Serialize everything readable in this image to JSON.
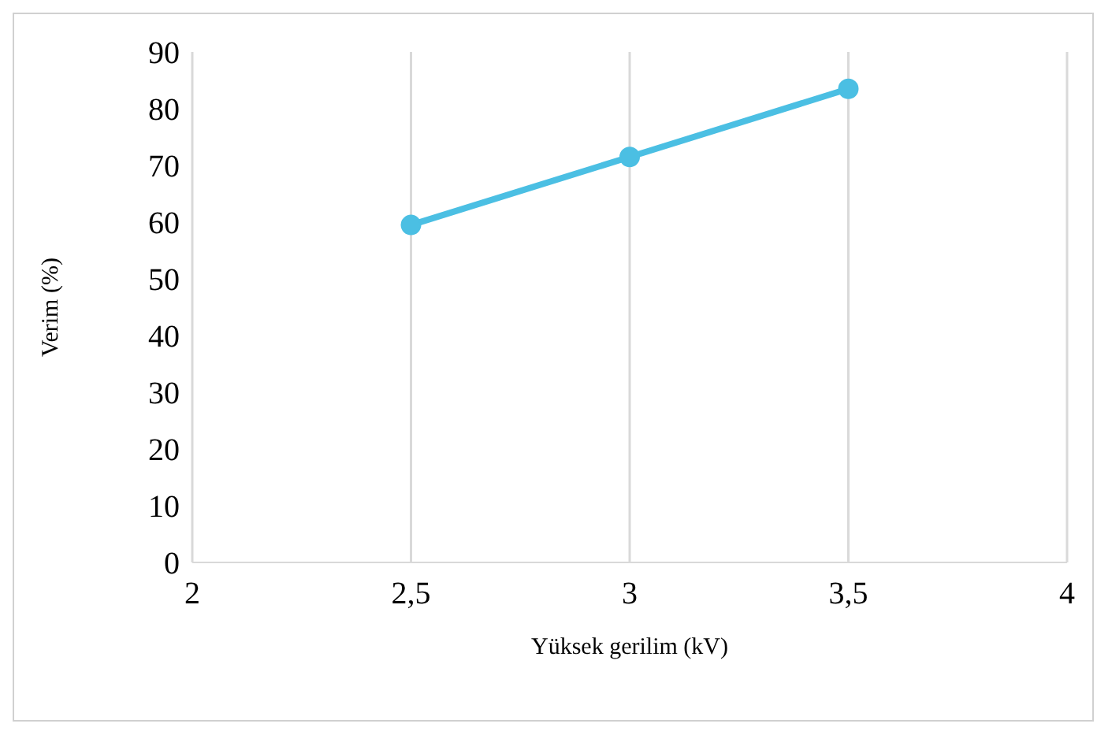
{
  "chart_data": {
    "type": "line",
    "xlabel": "Yüksek gerilim (kV)",
    "ylabel": "Verim (%)",
    "x": [
      2.5,
      3,
      3.5
    ],
    "series": [
      {
        "color": "#4bbfe3",
        "values": [
          59.5,
          71.5,
          83.5
        ]
      }
    ],
    "xlim": [
      2,
      4
    ],
    "xticks": [
      2,
      {
        "value": 2.5,
        "label": "2,5"
      },
      3,
      {
        "value": 3.5,
        "label": "3,5"
      },
      4
    ],
    "ylim": [
      0,
      90
    ],
    "yticks": [
      0,
      10,
      20,
      30,
      40,
      50,
      60,
      70,
      80,
      90
    ],
    "grid": "x",
    "legend": false,
    "marker": "circle",
    "line_style": "solid"
  }
}
